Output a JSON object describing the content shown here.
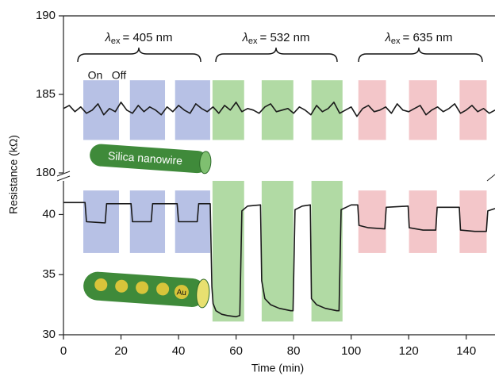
{
  "chart_data": {
    "type": "line",
    "xlabel": "Time (min)",
    "ylabel": "Resistance (kΩ)",
    "xlim": [
      0,
      150
    ],
    "xticks": [
      0,
      20,
      40,
      60,
      80,
      100,
      120,
      140
    ],
    "annotations": [
      {
        "symbol": "λ",
        "subscript": "ex",
        "text": "= 405 nm"
      },
      {
        "symbol": "λ",
        "subscript": "ex",
        "text": "= 532 nm"
      },
      {
        "symbol": "λ",
        "subscript": "ex",
        "text": "= 635 nm"
      }
    ],
    "on_label": "On",
    "off_label": "Off",
    "upper_inset": "Silica nanowire",
    "lower_inset": "Au",
    "panels": [
      {
        "ylim": [
          180,
          190
        ],
        "yticks": [
          180,
          185,
          190
        ],
        "shading": [
          {
            "x": [
              6.9,
              19.3
            ],
            "y": [
              182.1,
              185.9
            ],
            "color": "#aab6e0"
          },
          {
            "x": [
              23.1,
              35.3
            ],
            "y": [
              182.1,
              185.9
            ],
            "color": "#aab6e0"
          },
          {
            "x": [
              38.8,
              51
            ],
            "y": [
              182.1,
              185.9
            ],
            "color": "#aab6e0"
          },
          {
            "x": [
              51.8,
              62.8
            ],
            "y": [
              182.1,
              185.9
            ],
            "color": "#a3d394"
          },
          {
            "x": [
              68.9,
              79.9
            ],
            "y": [
              182.1,
              185.9
            ],
            "color": "#a3d394"
          },
          {
            "x": [
              86.2,
              97
            ],
            "y": [
              182.1,
              185.9
            ],
            "color": "#a3d394"
          },
          {
            "x": [
              102.5,
              112.1
            ],
            "y": [
              182.1,
              185.9
            ],
            "color": "#f1bcc0"
          },
          {
            "x": [
              120.1,
              129.8
            ],
            "y": [
              182.1,
              185.9
            ],
            "color": "#f1bcc0"
          },
          {
            "x": [
              137.7,
              147.1
            ],
            "y": [
              182.1,
              185.9
            ],
            "color": "#f1bcc0"
          }
        ],
        "series": [
          {
            "color": "#1a1a1a",
            "x": [
              0,
              2,
              4,
              6,
              8,
              10,
              12,
              14,
              16,
              18,
              20,
              22,
              24,
              26,
              28,
              30,
              32,
              34,
              36,
              38,
              40,
              42,
              44,
              46,
              48,
              50,
              52,
              54,
              56,
              58,
              60,
              62,
              64,
              66,
              68,
              70,
              72,
              74,
              76,
              78,
              80,
              82,
              84,
              86,
              88,
              90,
              92,
              94,
              96,
              98,
              100,
              102,
              104,
              106,
              108,
              110,
              112,
              114,
              116,
              118,
              120,
              122,
              124,
              126,
              128,
              130,
              132,
              134,
              136,
              138,
              140,
              142,
              144,
              146,
              148,
              150
            ],
            "values": [
              184.1,
              184.3,
              183.9,
              184.2,
              183.8,
              184.0,
              184.4,
              183.7,
              184.1,
              183.9,
              184.5,
              184.0,
              183.8,
              184.3,
              183.9,
              184.2,
              184.0,
              183.7,
              184.2,
              183.9,
              184.3,
              184.0,
              183.8,
              184.4,
              184.1,
              183.9,
              184.2,
              183.8,
              184.3,
              184.0,
              184.5,
              183.9,
              184.1,
              184.0,
              183.8,
              184.2,
              184.4,
              183.9,
              184.0,
              184.1,
              183.8,
              184.2,
              184.0,
              183.7,
              184.3,
              183.9,
              184.1,
              184.5,
              183.8,
              184.0,
              184.2,
              183.6,
              184.1,
              184.3,
              183.9,
              184.0,
              184.2,
              183.8,
              184.4,
              184.0,
              183.9,
              184.1,
              184.3,
              183.7,
              184.0,
              184.2,
              183.9,
              184.1,
              184.4,
              183.8,
              184.0,
              184.3,
              183.9,
              184.1,
              183.8,
              184.0
            ]
          }
        ]
      },
      {
        "ylim": [
          30,
          42.8
        ],
        "yticks": [
          30,
          35,
          40
        ],
        "shading": [
          {
            "x": [
              6.9,
              19.3
            ],
            "y": [
              36.8,
              42
            ],
            "color": "#aab6e0"
          },
          {
            "x": [
              23.1,
              35.3
            ],
            "y": [
              36.8,
              42
            ],
            "color": "#aab6e0"
          },
          {
            "x": [
              38.8,
              51
            ],
            "y": [
              36.8,
              42
            ],
            "color": "#aab6e0"
          },
          {
            "x": [
              51.8,
              62.8
            ],
            "y": [
              31.1,
              42.8
            ],
            "color": "#a3d394"
          },
          {
            "x": [
              68.9,
              79.9
            ],
            "y": [
              31.1,
              42.8
            ],
            "color": "#a3d394"
          },
          {
            "x": [
              86.2,
              97
            ],
            "y": [
              31.1,
              42.8
            ],
            "color": "#a3d394"
          },
          {
            "x": [
              102.5,
              112.1
            ],
            "y": [
              36.8,
              42
            ],
            "color": "#f1bcc0"
          },
          {
            "x": [
              120.1,
              129.8
            ],
            "y": [
              36.8,
              42
            ],
            "color": "#f1bcc0"
          },
          {
            "x": [
              137.7,
              147.1
            ],
            "y": [
              36.8,
              42
            ],
            "color": "#f1bcc0"
          }
        ],
        "series": [
          {
            "color": "#1a1a1a",
            "x": [
              0,
              7.5,
              8,
              14.5,
              15,
              23.5,
              24,
              30.5,
              31,
              39.5,
              40,
              46.5,
              47,
              51,
              51.6,
              52,
              53,
              55,
              57,
              60,
              61.3,
              62,
              64,
              68.5,
              68.9,
              70,
              72,
              75,
              79,
              79.8,
              80.5,
              83,
              85.8,
              86.2,
              88,
              91,
              95,
              95.8,
              96.5,
              100,
              102.3,
              102.7,
              106,
              111.7,
              112.2,
              119.8,
              120.2,
              125,
              129.4,
              129.9,
              137.6,
              138,
              143,
              147,
              147.5,
              150
            ],
            "values": [
              41,
              41,
              39.4,
              39.3,
              40.9,
              40.9,
              39.4,
              39.4,
              40.9,
              40.9,
              39.4,
              39.4,
              40.9,
              40.9,
              34,
              32.6,
              32,
              31.7,
              31.6,
              31.5,
              31.6,
              40.3,
              40.7,
              40.8,
              34.5,
              33,
              32.5,
              32.2,
              32,
              32,
              40.4,
              40.7,
              40.8,
              33,
              32.5,
              32.2,
              32,
              32,
              40.4,
              40.8,
              40.8,
              39.1,
              38.9,
              38.8,
              40.6,
              40.7,
              38.9,
              38.7,
              38.7,
              40.6,
              40.6,
              38.7,
              38.6,
              38.6,
              40.3,
              40.5
            ]
          }
        ]
      }
    ]
  }
}
